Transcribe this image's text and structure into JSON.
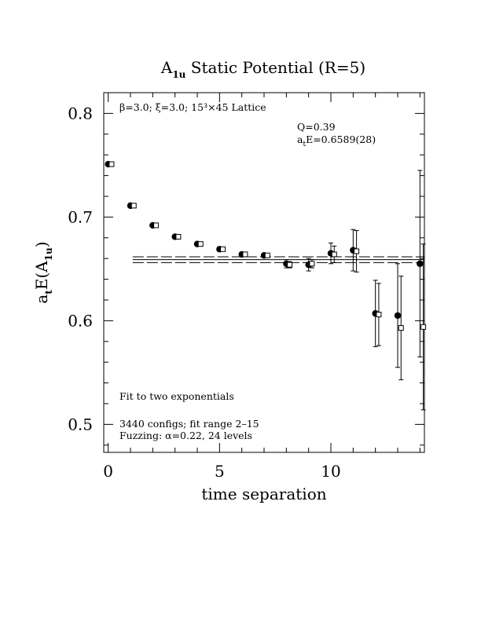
{
  "chart_data": {
    "type": "scatter",
    "title_main": "A",
    "title_sub": "1u",
    "title_rest": " Static Potential (R=5)",
    "xlabel": "time separation",
    "ylabel_a": "a",
    "ylabel_t": "t",
    "ylabel_e": "E(A",
    "ylabel_sub": "1u",
    "ylabel_end": ")",
    "xlim": [
      -0.2,
      14.2
    ],
    "ylim": [
      0.473,
      0.82
    ],
    "x_ticks": [
      0,
      5,
      10
    ],
    "x_tick_labels": [
      "0",
      "5",
      "10"
    ],
    "y_ticks": [
      0.5,
      0.6,
      0.7,
      0.8
    ],
    "y_tick_labels": [
      "0.5",
      "0.6",
      "0.7",
      "0.8"
    ],
    "annotations": {
      "lattice": "β=3.0; ξ=3.0; 15³×45 Lattice",
      "q": "Q=0.39",
      "energy_a": "a",
      "energy_t": "t",
      "energy_rest": "E=0.6589(28)",
      "fit": "Fit to two exponentials",
      "configs": "3440 configs; fit range 2–15",
      "fuzzing": "Fuzzing: α=0.22, 24 levels"
    },
    "fit": {
      "value": 0.6589,
      "error": 0.0028,
      "x_range": [
        1.1,
        14.2
      ]
    },
    "series": [
      {
        "name": "data",
        "marker": "filled-circle",
        "x": [
          0,
          1,
          2,
          3,
          4,
          5,
          6,
          7,
          8,
          9,
          10,
          11,
          12,
          13,
          14
        ],
        "y": [
          0.751,
          0.711,
          0.692,
          0.681,
          0.674,
          0.669,
          0.664,
          0.663,
          0.655,
          0.654,
          0.665,
          0.668,
          0.607,
          0.605,
          0.655
        ],
        "err": [
          0.001,
          0.001,
          0.001,
          0.001,
          0.001,
          0.002,
          0.002,
          0.002,
          0.004,
          0.006,
          0.01,
          0.02,
          0.032,
          0.05,
          0.09
        ]
      },
      {
        "name": "fit curve",
        "marker": "open-square",
        "x": [
          0.15,
          1.15,
          2.15,
          3.15,
          4.15,
          5.15,
          6.15,
          7.15,
          8.15,
          9.15,
          10.15,
          11.15,
          12.15,
          13.15,
          14.15
        ],
        "y": [
          0.751,
          0.711,
          0.692,
          0.681,
          0.674,
          0.669,
          0.664,
          0.663,
          0.654,
          0.655,
          0.664,
          0.667,
          0.606,
          0.593,
          0.594
        ],
        "err": [
          0.001,
          0.001,
          0.001,
          0.001,
          0.001,
          0.001,
          0.001,
          0.001,
          0.003,
          0.004,
          0.008,
          0.02,
          0.03,
          0.05,
          0.08
        ]
      }
    ]
  }
}
